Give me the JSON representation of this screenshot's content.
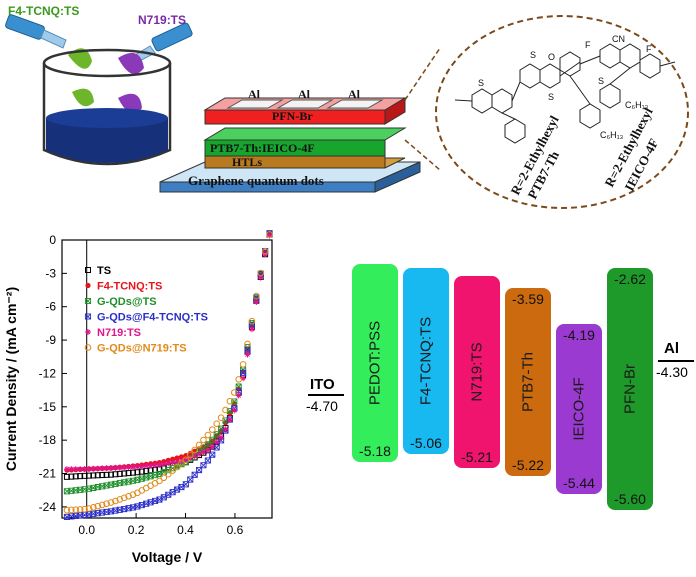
{
  "schematic": {
    "dye_left": "F4-TCNQ:TS",
    "dye_right": "N719:TS",
    "layers": [
      "PFN-Br",
      "PTB7-Th:IEICO-4F",
      "HTLs",
      "Graphene quantum dots"
    ],
    "electrode": "Al",
    "molecule_left_label_1": "R=2-Ethylhexyl",
    "molecule_left_label_2": "PTB7-Th",
    "molecule_right_label_1": "R=2-Ethylhexyl",
    "molecule_right_label_2": "IEICO-4F"
  },
  "chart_data": {
    "type": "line",
    "xlabel": "Voltage / V",
    "ylabel": "Current Density / (mA cm⁻²)",
    "xlim": [
      -0.1,
      0.75
    ],
    "ylim": [
      -25,
      0
    ],
    "xticks": [
      "0.0",
      "0.2",
      "0.4",
      "0.6"
    ],
    "yticks": [
      "0",
      "-3",
      "-6",
      "-9",
      "-12",
      "-15",
      "-18",
      "-21",
      "-24"
    ],
    "series": [
      {
        "name": "TS",
        "color": "#000000",
        "marker": "square-half",
        "x": [
          -0.08,
          0.0,
          0.1,
          0.2,
          0.3,
          0.4,
          0.5,
          0.55,
          0.6,
          0.63,
          0.66,
          0.69,
          0.72,
          0.74
        ],
        "y": [
          -21.3,
          -21.2,
          -21.1,
          -20.9,
          -20.6,
          -20.0,
          -18.8,
          -17.5,
          -15.0,
          -12.5,
          -9.0,
          -5.0,
          -1.5,
          0.5
        ]
      },
      {
        "name": "F4-TCNQ:TS",
        "color": "#e8141a",
        "marker": "circle",
        "x": [
          -0.08,
          0.0,
          0.1,
          0.2,
          0.3,
          0.4,
          0.5,
          0.55,
          0.6,
          0.63,
          0.66,
          0.69,
          0.72,
          0.74
        ],
        "y": [
          -20.7,
          -20.6,
          -20.5,
          -20.3,
          -20.0,
          -19.4,
          -18.3,
          -17.0,
          -14.6,
          -12.2,
          -8.8,
          -4.8,
          -1.3,
          0.6
        ]
      },
      {
        "name": "G-QDs@TS",
        "color": "#1f8f2a",
        "marker": "x-box",
        "x": [
          -0.08,
          0.0,
          0.1,
          0.2,
          0.3,
          0.4,
          0.5,
          0.55,
          0.6,
          0.63,
          0.66,
          0.69,
          0.72,
          0.74
        ],
        "y": [
          -22.6,
          -22.4,
          -22.0,
          -21.6,
          -21.0,
          -20.0,
          -18.2,
          -16.8,
          -14.4,
          -12.0,
          -8.6,
          -4.7,
          -1.2,
          0.6
        ]
      },
      {
        "name": "G-QDs@F4-TCNQ:TS",
        "color": "#2b2ec8",
        "marker": "x-box",
        "x": [
          -0.08,
          0.0,
          0.1,
          0.2,
          0.3,
          0.4,
          0.5,
          0.55,
          0.6,
          0.63,
          0.66,
          0.69,
          0.72,
          0.74
        ],
        "y": [
          -24.9,
          -24.7,
          -24.4,
          -24.0,
          -23.3,
          -22.0,
          -19.6,
          -17.8,
          -15.0,
          -12.3,
          -8.8,
          -4.8,
          -1.2,
          0.6
        ]
      },
      {
        "name": "N719:TS",
        "color": "#e0148c",
        "marker": "asterisk",
        "x": [
          -0.08,
          0.0,
          0.1,
          0.2,
          0.3,
          0.4,
          0.5,
          0.55,
          0.6,
          0.63,
          0.66,
          0.69,
          0.72,
          0.74
        ],
        "y": [
          -20.6,
          -20.6,
          -20.5,
          -20.4,
          -20.2,
          -19.8,
          -18.8,
          -17.6,
          -15.2,
          -12.8,
          -9.2,
          -5.1,
          -1.5,
          0.4
        ]
      },
      {
        "name": "G-QDs@N719:TS",
        "color": "#e08a1a",
        "marker": "open-circle",
        "x": [
          -0.08,
          0.0,
          0.1,
          0.2,
          0.3,
          0.4,
          0.5,
          0.55,
          0.6,
          0.63,
          0.66,
          0.69,
          0.72,
          0.74
        ],
        "y": [
          -24.3,
          -24.2,
          -23.6,
          -22.8,
          -21.6,
          -19.8,
          -17.3,
          -15.8,
          -13.6,
          -11.5,
          -8.4,
          -4.6,
          -1.2,
          0.5
        ]
      }
    ]
  },
  "energy": {
    "electrode_left": {
      "name": "ITO",
      "value": "-4.70"
    },
    "electrode_right": {
      "name": "Al",
      "value": "-4.30"
    },
    "levels": [
      {
        "name": "PEDOT:PSS",
        "top": "",
        "bottom": "-5.18",
        "color": "#33ee5a"
      },
      {
        "name": "F4-TCNQ:TS",
        "top": "",
        "bottom": "-5.06",
        "color": "#18b8f0"
      },
      {
        "name": "N719:TS",
        "top": "",
        "bottom": "-5.21",
        "color": "#f0146e"
      },
      {
        "name": "PTB7-Th",
        "top": "-3.59",
        "bottom": "-5.22",
        "color": "#cc6a0f"
      },
      {
        "name": "IEICO-4F",
        "top": "-4.19",
        "bottom": "-5.44",
        "color": "#9a3ad0"
      },
      {
        "name": "PFN-Br",
        "top": "-2.62",
        "bottom": "-5.60",
        "color": "#1e9a2a"
      }
    ]
  }
}
